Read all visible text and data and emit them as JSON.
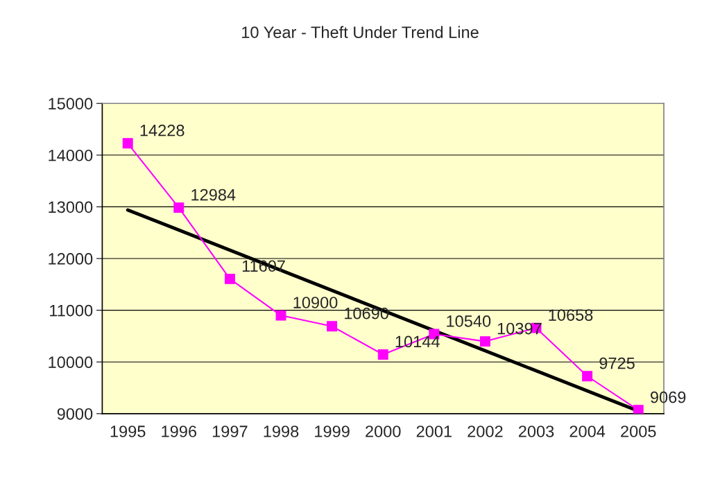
{
  "chart_data": {
    "type": "line",
    "title": "10 Year - Theft Under Trend Line",
    "x": [
      1995,
      1996,
      1997,
      1998,
      1999,
      2000,
      2001,
      2002,
      2003,
      2004,
      2005
    ],
    "series": [
      {
        "color": "#ff00ff",
        "marker": "square",
        "data_labels": true,
        "values": [
          14228,
          12984,
          11607,
          10900,
          10690,
          10144,
          10540,
          10397,
          10658,
          9725,
          9069
        ]
      },
      {
        "type": "line",
        "color": "#000000",
        "marker": "none",
        "x": [
          1995,
          2005
        ],
        "values": [
          12940,
          9050
        ]
      }
    ],
    "xlim": [
      1994.5,
      2005.5
    ],
    "xticks": [
      1995,
      1996,
      1997,
      1998,
      1999,
      2000,
      2001,
      2002,
      2003,
      2004,
      2005
    ],
    "ylim": [
      9000,
      15000
    ],
    "yticks": [
      9000,
      10000,
      11000,
      12000,
      13000,
      14000,
      15000
    ],
    "grid": "y",
    "legend": false
  }
}
